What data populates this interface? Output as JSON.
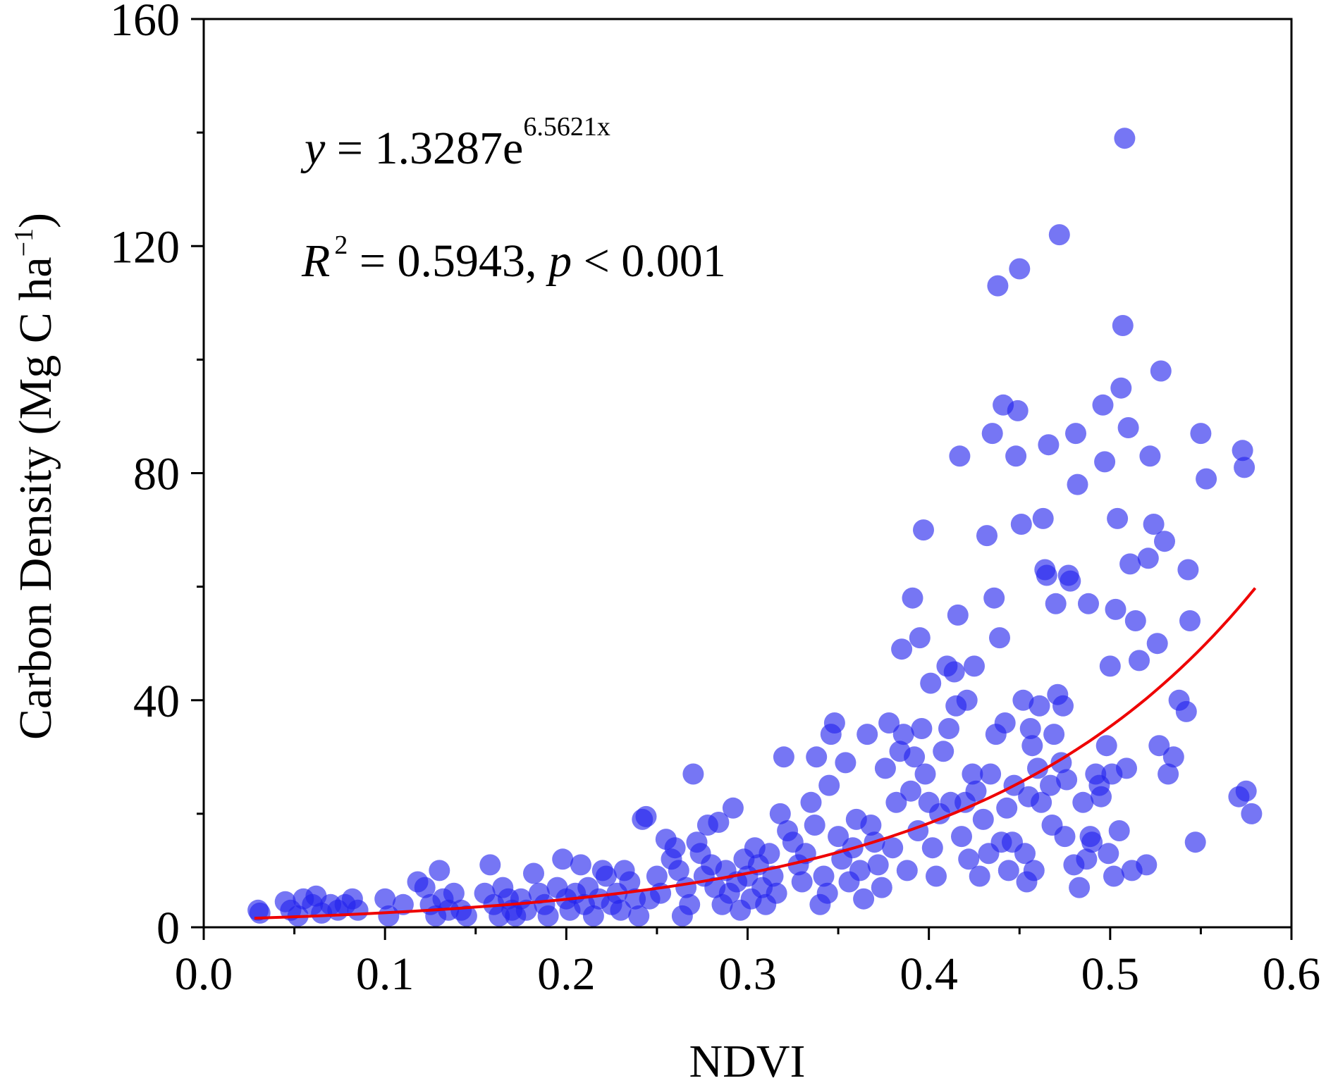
{
  "chart_data": {
    "type": "scatter",
    "xlabel": "NDVI",
    "ylabel": "Carbon Density (Mg C ha",
    "ylabel_sup": "−1",
    "ylabel_close": ")",
    "xlim": [
      0.0,
      0.6
    ],
    "ylim": [
      0,
      160
    ],
    "x_ticks": [
      "0.0",
      "0.1",
      "0.2",
      "0.3",
      "0.4",
      "0.5",
      "0.6"
    ],
    "y_ticks": [
      "0",
      "40",
      "80",
      "120",
      "160"
    ],
    "grid": false,
    "colors": {
      "points": "#2222ee",
      "fit": "#ee0000",
      "axis": "#000000"
    },
    "annotations": {
      "eq_y": "y",
      "eq_mid": " = 1.3287e",
      "eq_exp": "6.5621x",
      "r2_r": "R",
      "r2_sup": "2",
      "r2_mid": " = 0.5943, ",
      "r2_p": "p",
      "r2_tail": " < 0.001"
    },
    "fit": {
      "model": "exponential",
      "a": 1.3287,
      "b": 6.5621,
      "x_range": [
        0.028,
        0.58
      ]
    },
    "points": [
      [
        0.03,
        3
      ],
      [
        0.031,
        2.5
      ],
      [
        0.045,
        4.5
      ],
      [
        0.048,
        3
      ],
      [
        0.052,
        2
      ],
      [
        0.055,
        5
      ],
      [
        0.06,
        4
      ],
      [
        0.062,
        5.5
      ],
      [
        0.065,
        2.5
      ],
      [
        0.07,
        4
      ],
      [
        0.074,
        3
      ],
      [
        0.078,
        4
      ],
      [
        0.082,
        5
      ],
      [
        0.085,
        3
      ],
      [
        0.1,
        5
      ],
      [
        0.102,
        2
      ],
      [
        0.11,
        4
      ],
      [
        0.118,
        8
      ],
      [
        0.122,
        7
      ],
      [
        0.125,
        4
      ],
      [
        0.128,
        2
      ],
      [
        0.13,
        10
      ],
      [
        0.132,
        5
      ],
      [
        0.135,
        3
      ],
      [
        0.138,
        6
      ],
      [
        0.142,
        3
      ],
      [
        0.145,
        2
      ],
      [
        0.155,
        6
      ],
      [
        0.158,
        11
      ],
      [
        0.16,
        4
      ],
      [
        0.163,
        2
      ],
      [
        0.165,
        7
      ],
      [
        0.168,
        5
      ],
      [
        0.17,
        3
      ],
      [
        0.172,
        2
      ],
      [
        0.175,
        5
      ],
      [
        0.178,
        3
      ],
      [
        0.182,
        9.5
      ],
      [
        0.185,
        6
      ],
      [
        0.188,
        4
      ],
      [
        0.19,
        2
      ],
      [
        0.195,
        7
      ],
      [
        0.198,
        12
      ],
      [
        0.2,
        5
      ],
      [
        0.202,
        3
      ],
      [
        0.205,
        6
      ],
      [
        0.208,
        11
      ],
      [
        0.21,
        4
      ],
      [
        0.212,
        7
      ],
      [
        0.215,
        2
      ],
      [
        0.218,
        5
      ],
      [
        0.22,
        10
      ],
      [
        0.222,
        9
      ],
      [
        0.225,
        4
      ],
      [
        0.228,
        6
      ],
      [
        0.23,
        3
      ],
      [
        0.232,
        10
      ],
      [
        0.235,
        8
      ],
      [
        0.238,
        5
      ],
      [
        0.24,
        2
      ],
      [
        0.242,
        19
      ],
      [
        0.244,
        19.5
      ],
      [
        0.246,
        5
      ],
      [
        0.25,
        9
      ],
      [
        0.252,
        6
      ],
      [
        0.255,
        15.5
      ],
      [
        0.258,
        12
      ],
      [
        0.26,
        14
      ],
      [
        0.262,
        10
      ],
      [
        0.264,
        2
      ],
      [
        0.266,
        7
      ],
      [
        0.268,
        4
      ],
      [
        0.27,
        27
      ],
      [
        0.272,
        15
      ],
      [
        0.274,
        13
      ],
      [
        0.276,
        9
      ],
      [
        0.278,
        18
      ],
      [
        0.28,
        11
      ],
      [
        0.282,
        7
      ],
      [
        0.284,
        18.5
      ],
      [
        0.286,
        4
      ],
      [
        0.288,
        10
      ],
      [
        0.29,
        6
      ],
      [
        0.292,
        21
      ],
      [
        0.294,
        8
      ],
      [
        0.296,
        3
      ],
      [
        0.298,
        12
      ],
      [
        0.3,
        9
      ],
      [
        0.302,
        5
      ],
      [
        0.304,
        14
      ],
      [
        0.306,
        11
      ],
      [
        0.308,
        7
      ],
      [
        0.31,
        4
      ],
      [
        0.312,
        13
      ],
      [
        0.314,
        9
      ],
      [
        0.316,
        6
      ],
      [
        0.318,
        20
      ],
      [
        0.32,
        30
      ],
      [
        0.322,
        17
      ],
      [
        0.325,
        15
      ],
      [
        0.328,
        11
      ],
      [
        0.33,
        8
      ],
      [
        0.332,
        13
      ],
      [
        0.335,
        22
      ],
      [
        0.337,
        18
      ],
      [
        0.338,
        30
      ],
      [
        0.34,
        4
      ],
      [
        0.342,
        9
      ],
      [
        0.344,
        6
      ],
      [
        0.345,
        25
      ],
      [
        0.346,
        34
      ],
      [
        0.348,
        36
      ],
      [
        0.35,
        16
      ],
      [
        0.352,
        12
      ],
      [
        0.354,
        29
      ],
      [
        0.356,
        8
      ],
      [
        0.358,
        14
      ],
      [
        0.36,
        19
      ],
      [
        0.362,
        10
      ],
      [
        0.364,
        5
      ],
      [
        0.366,
        34
      ],
      [
        0.368,
        18
      ],
      [
        0.37,
        15
      ],
      [
        0.372,
        11
      ],
      [
        0.374,
        7
      ],
      [
        0.376,
        28
      ],
      [
        0.378,
        36
      ],
      [
        0.38,
        14
      ],
      [
        0.382,
        22
      ],
      [
        0.384,
        31
      ],
      [
        0.385,
        49
      ],
      [
        0.386,
        34
      ],
      [
        0.388,
        10
      ],
      [
        0.39,
        24
      ],
      [
        0.391,
        58
      ],
      [
        0.392,
        30
      ],
      [
        0.394,
        17
      ],
      [
        0.395,
        51
      ],
      [
        0.396,
        35
      ],
      [
        0.397,
        70
      ],
      [
        0.398,
        27
      ],
      [
        0.4,
        22
      ],
      [
        0.401,
        43
      ],
      [
        0.402,
        14
      ],
      [
        0.404,
        9
      ],
      [
        0.406,
        20
      ],
      [
        0.408,
        31
      ],
      [
        0.41,
        46
      ],
      [
        0.411,
        35
      ],
      [
        0.412,
        22
      ],
      [
        0.414,
        45
      ],
      [
        0.415,
        39
      ],
      [
        0.416,
        55
      ],
      [
        0.417,
        83
      ],
      [
        0.418,
        16
      ],
      [
        0.42,
        22
      ],
      [
        0.421,
        40
      ],
      [
        0.422,
        12
      ],
      [
        0.424,
        27
      ],
      [
        0.425,
        46
      ],
      [
        0.426,
        24
      ],
      [
        0.428,
        9
      ],
      [
        0.43,
        19
      ],
      [
        0.432,
        69
      ],
      [
        0.433,
        13
      ],
      [
        0.434,
        27
      ],
      [
        0.435,
        87
      ],
      [
        0.436,
        58
      ],
      [
        0.437,
        34
      ],
      [
        0.438,
        113
      ],
      [
        0.439,
        51
      ],
      [
        0.44,
        15
      ],
      [
        0.441,
        92
      ],
      [
        0.442,
        36
      ],
      [
        0.443,
        21
      ],
      [
        0.444,
        10
      ],
      [
        0.446,
        15
      ],
      [
        0.447,
        25
      ],
      [
        0.448,
        83
      ],
      [
        0.449,
        91
      ],
      [
        0.45,
        116
      ],
      [
        0.451,
        71
      ],
      [
        0.452,
        40
      ],
      [
        0.453,
        13
      ],
      [
        0.454,
        8
      ],
      [
        0.455,
        23
      ],
      [
        0.456,
        35
      ],
      [
        0.457,
        32
      ],
      [
        0.458,
        10
      ],
      [
        0.46,
        28
      ],
      [
        0.461,
        39
      ],
      [
        0.462,
        22
      ],
      [
        0.463,
        72
      ],
      [
        0.464,
        63
      ],
      [
        0.465,
        62
      ],
      [
        0.466,
        85
      ],
      [
        0.467,
        25
      ],
      [
        0.468,
        18
      ],
      [
        0.469,
        34
      ],
      [
        0.47,
        57
      ],
      [
        0.471,
        41
      ],
      [
        0.472,
        122
      ],
      [
        0.473,
        29
      ],
      [
        0.474,
        39
      ],
      [
        0.475,
        16
      ],
      [
        0.476,
        26
      ],
      [
        0.477,
        62
      ],
      [
        0.478,
        61
      ],
      [
        0.48,
        11
      ],
      [
        0.481,
        87
      ],
      [
        0.482,
        78
      ],
      [
        0.483,
        7
      ],
      [
        0.485,
        22
      ],
      [
        0.487,
        12
      ],
      [
        0.488,
        57
      ],
      [
        0.489,
        16
      ],
      [
        0.49,
        15
      ],
      [
        0.492,
        27
      ],
      [
        0.494,
        25
      ],
      [
        0.495,
        23
      ],
      [
        0.496,
        92
      ],
      [
        0.497,
        82
      ],
      [
        0.498,
        32
      ],
      [
        0.499,
        13
      ],
      [
        0.5,
        46
      ],
      [
        0.501,
        27
      ],
      [
        0.502,
        9
      ],
      [
        0.503,
        56
      ],
      [
        0.504,
        72
      ],
      [
        0.505,
        17
      ],
      [
        0.506,
        95
      ],
      [
        0.507,
        106
      ],
      [
        0.508,
        139
      ],
      [
        0.509,
        28
      ],
      [
        0.51,
        88
      ],
      [
        0.511,
        64
      ],
      [
        0.512,
        10
      ],
      [
        0.514,
        54
      ],
      [
        0.516,
        47
      ],
      [
        0.52,
        11
      ],
      [
        0.521,
        65
      ],
      [
        0.522,
        83
      ],
      [
        0.524,
        71
      ],
      [
        0.526,
        50
      ],
      [
        0.527,
        32
      ],
      [
        0.528,
        98
      ],
      [
        0.53,
        68
      ],
      [
        0.532,
        27
      ],
      [
        0.535,
        30
      ],
      [
        0.538,
        40
      ],
      [
        0.542,
        38
      ],
      [
        0.543,
        63
      ],
      [
        0.544,
        54
      ],
      [
        0.547,
        15
      ],
      [
        0.55,
        87
      ],
      [
        0.553,
        79
      ],
      [
        0.571,
        23
      ],
      [
        0.573,
        84
      ],
      [
        0.574,
        81
      ],
      [
        0.575,
        24
      ],
      [
        0.578,
        20
      ]
    ]
  }
}
